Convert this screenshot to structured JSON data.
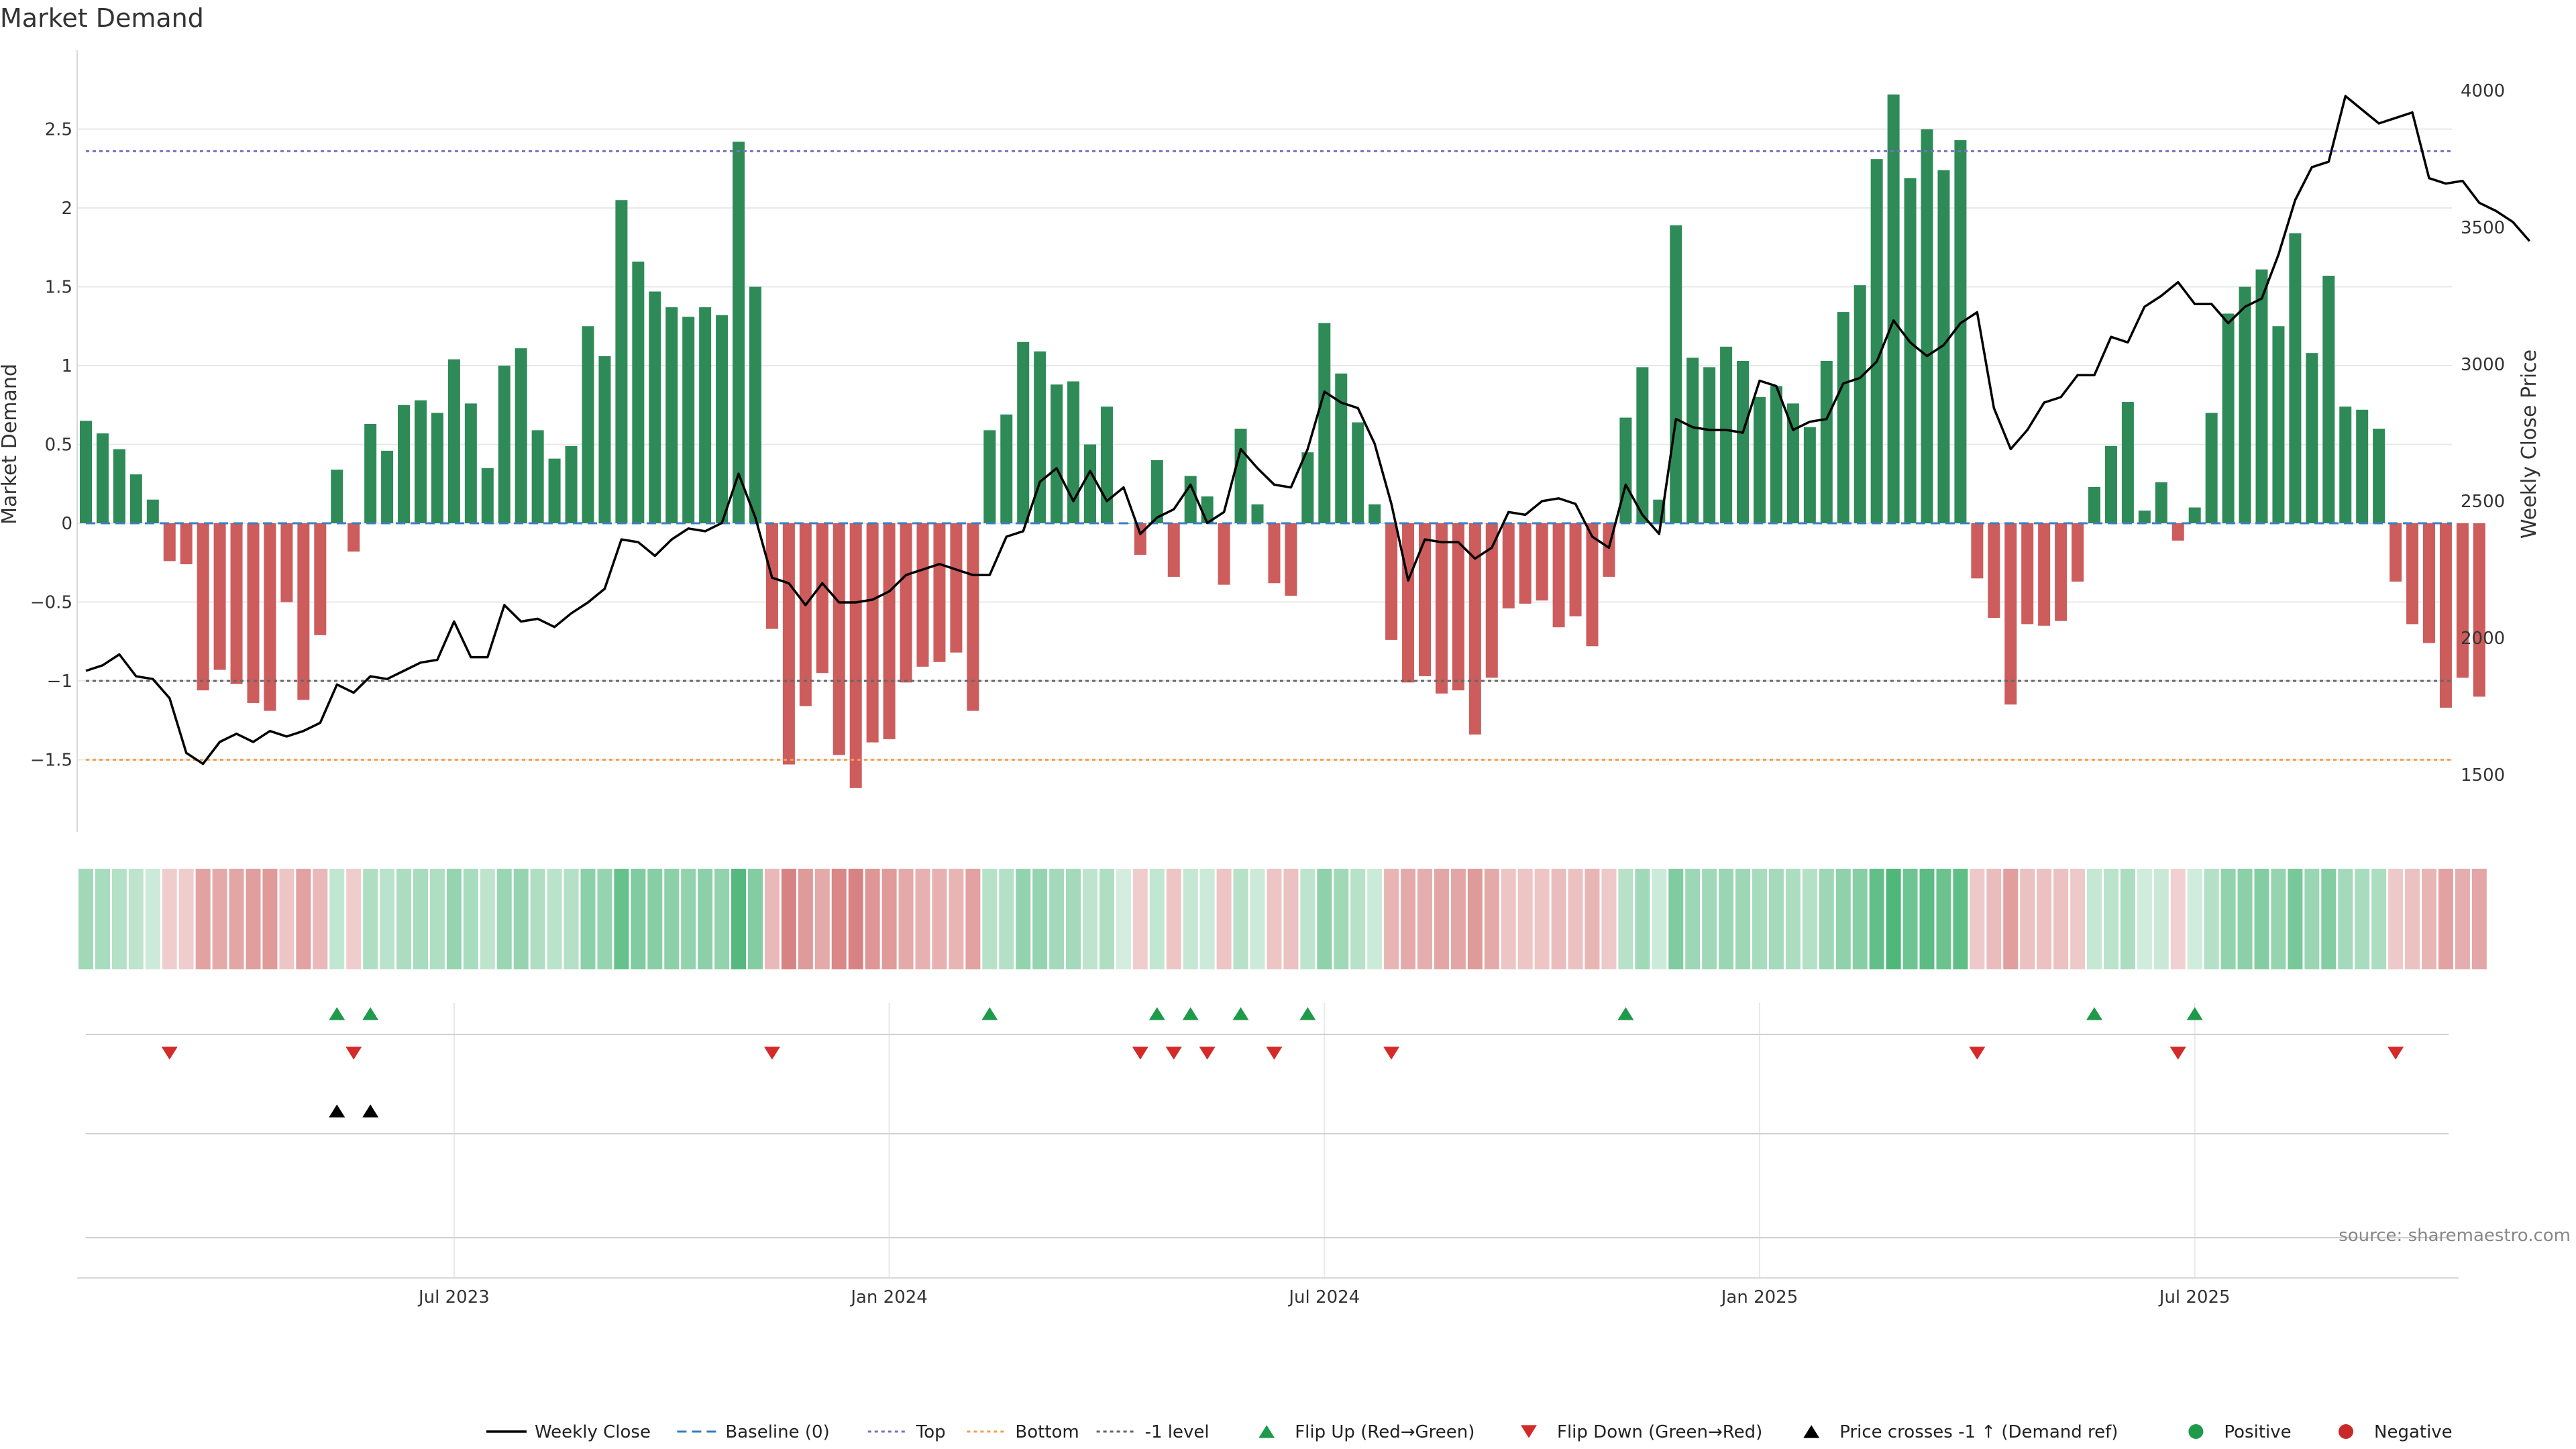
{
  "chart_data": {
    "type": "bar",
    "title": "Market Demand",
    "ylabel": "Market Demand",
    "y2label": "Weekly Close Price",
    "source": "source: sharemaestro.com",
    "ylim": [
      -1.95,
      2.95
    ],
    "y2lim": [
      1300,
      4100
    ],
    "yticks": [
      2.5,
      2,
      1.5,
      1,
      0.5,
      0,
      -0.5,
      -1,
      -1.5
    ],
    "ytick_labels": [
      "2.5",
      "2",
      "1.5",
      "1",
      "0.5",
      "0",
      "−0.5",
      "−1",
      "−1.5"
    ],
    "y2ticks": [
      4000,
      3500,
      3000,
      2500,
      2000,
      1500
    ],
    "y2tick_labels": [
      "4000",
      "3500",
      "3000",
      "2500",
      "2000",
      "1500"
    ],
    "reference_lines": [
      {
        "name": "Top",
        "value": 2.36,
        "color": "#7b6fc4"
      },
      {
        "name": "-1 level",
        "value": -1.0,
        "color": "#666666"
      },
      {
        "name": "Bottom",
        "value": -1.5,
        "color": "#f0a050"
      }
    ],
    "xtick_indices": [
      22,
      48,
      74,
      100,
      126
    ],
    "xtick_labels": [
      "Jul 2023",
      "Jan 2024",
      "Jul 2024",
      "Jan 2025",
      "Jul 2025"
    ],
    "demand": [
      0.65,
      0.57,
      0.47,
      0.31,
      0.15,
      -0.24,
      -0.26,
      -1.06,
      -0.93,
      -1.02,
      -1.14,
      -1.19,
      -0.5,
      -1.12,
      -0.71,
      0.34,
      -0.18,
      0.63,
      0.46,
      0.75,
      0.78,
      0.7,
      1.04,
      0.76,
      0.35,
      1.0,
      1.11,
      0.59,
      0.41,
      0.49,
      1.25,
      1.06,
      2.05,
      1.66,
      1.47,
      1.37,
      1.31,
      1.37,
      1.32,
      2.42,
      1.5,
      -0.67,
      -1.53,
      -1.16,
      -0.95,
      -1.47,
      -1.68,
      -1.39,
      -1.37,
      -1.01,
      -0.91,
      -0.88,
      -0.82,
      -1.19,
      0.59,
      0.69,
      1.15,
      1.09,
      0.88,
      0.9,
      0.5,
      0.74,
      0.0,
      -0.2,
      0.4,
      -0.34,
      0.3,
      0.17,
      -0.39,
      0.6,
      0.12,
      -0.38,
      -0.46,
      0.45,
      1.27,
      0.95,
      0.64,
      0.12,
      -0.74,
      -1.01,
      -0.97,
      -1.08,
      -1.06,
      -1.34,
      -0.98,
      -0.54,
      -0.51,
      -0.49,
      -0.66,
      -0.59,
      -0.78,
      -0.34,
      0.67,
      0.99,
      0.15,
      1.89,
      1.05,
      0.99,
      1.12,
      1.03,
      0.8,
      0.87,
      0.76,
      0.61,
      1.03,
      1.34,
      1.51,
      2.31,
      2.72,
      2.19,
      2.5,
      2.24,
      2.43,
      -0.35,
      -0.6,
      -1.15,
      -0.64,
      -0.65,
      -0.62,
      -0.37,
      0.23,
      0.49,
      0.77,
      0.08,
      0.26,
      -0.11,
      0.1,
      0.7,
      1.33,
      1.5,
      1.61,
      1.25,
      1.84,
      1.08,
      1.57,
      0.74,
      0.72,
      0.6,
      -0.37,
      -0.64,
      -0.76,
      -1.17,
      -0.98,
      -1.1
    ],
    "close": [
      1880,
      1900,
      1940,
      1860,
      1850,
      1780,
      1580,
      1540,
      1620,
      1650,
      1620,
      1660,
      1640,
      1660,
      1690,
      1830,
      1800,
      1860,
      1850,
      1880,
      1910,
      1920,
      2060,
      1930,
      1930,
      2120,
      2060,
      2070,
      2040,
      2090,
      2130,
      2180,
      2360,
      2350,
      2300,
      2360,
      2400,
      2390,
      2420,
      2600,
      2440,
      2220,
      2200,
      2120,
      2200,
      2130,
      2130,
      2140,
      2170,
      2230,
      2250,
      2270,
      2250,
      2230,
      2230,
      2370,
      2390,
      2570,
      2620,
      2500,
      2610,
      2500,
      2550,
      2380,
      2440,
      2470,
      2560,
      2420,
      2460,
      2690,
      2620,
      2560,
      2550,
      2690,
      2900,
      2860,
      2840,
      2710,
      2490,
      2210,
      2360,
      2350,
      2350,
      2290,
      2330,
      2460,
      2450,
      2500,
      2510,
      2490,
      2370,
      2330,
      2560,
      2450,
      2380,
      2800,
      2770,
      2760,
      2760,
      2750,
      2940,
      2920,
      2760,
      2790,
      2800,
      2930,
      2950,
      3010,
      3160,
      3080,
      3030,
      3070,
      3150,
      3190,
      2840,
      2690,
      2760,
      2860,
      2880,
      2960,
      2960,
      3100,
      3080,
      3210,
      3250,
      3300,
      3220,
      3220,
      3150,
      3210,
      3240,
      3400,
      3600,
      3720,
      3740,
      3980,
      3930,
      3880,
      3900,
      3920,
      3680,
      3660,
      3670,
      3590,
      3560,
      3520,
      3450
    ],
    "heat_lightness": [
      0.74,
      0.76,
      0.79,
      0.82,
      0.86,
      0.87,
      0.87,
      0.76,
      0.78,
      0.77,
      0.75,
      0.74,
      0.85,
      0.76,
      0.82,
      0.83,
      0.87,
      0.78,
      0.81,
      0.77,
      0.76,
      0.78,
      0.71,
      0.76,
      0.82,
      0.72,
      0.71,
      0.78,
      0.81,
      0.79,
      0.68,
      0.71,
      0.58,
      0.65,
      0.67,
      0.68,
      0.7,
      0.68,
      0.7,
      0.53,
      0.66,
      0.82,
      0.68,
      0.74,
      0.78,
      0.69,
      0.68,
      0.73,
      0.74,
      0.78,
      0.8,
      0.8,
      0.81,
      0.76,
      0.8,
      0.79,
      0.7,
      0.71,
      0.75,
      0.75,
      0.82,
      0.78,
      0.88,
      0.87,
      0.83,
      0.85,
      0.84,
      0.86,
      0.85,
      0.8,
      0.86,
      0.85,
      0.84,
      0.82,
      0.69,
      0.74,
      0.8,
      0.86,
      0.81,
      0.78,
      0.79,
      0.77,
      0.77,
      0.74,
      0.78,
      0.85,
      0.85,
      0.85,
      0.83,
      0.84,
      0.81,
      0.86,
      0.8,
      0.74,
      0.86,
      0.65,
      0.73,
      0.74,
      0.72,
      0.73,
      0.76,
      0.75,
      0.77,
      0.79,
      0.73,
      0.69,
      0.67,
      0.57,
      0.51,
      0.6,
      0.55,
      0.59,
      0.56,
      0.86,
      0.83,
      0.75,
      0.84,
      0.84,
      0.84,
      0.86,
      0.84,
      0.81,
      0.77,
      0.87,
      0.85,
      0.88,
      0.87,
      0.79,
      0.7,
      0.68,
      0.66,
      0.71,
      0.63,
      0.72,
      0.66,
      0.75,
      0.76,
      0.77,
      0.86,
      0.84,
      0.81,
      0.76,
      0.79,
      0.77
    ],
    "flip_up": [
      15,
      17,
      54,
      64,
      66,
      69,
      73,
      92,
      120,
      126
    ],
    "flip_down": [
      5,
      16,
      41,
      63,
      65,
      67,
      71,
      78,
      113,
      125,
      138
    ],
    "price_cross": [
      15,
      17
    ],
    "legend": [
      {
        "label": "Weekly Close",
        "kind": "line",
        "color": "#000000"
      },
      {
        "label": "Baseline (0)",
        "kind": "dashed",
        "color": "#3a7ebf"
      },
      {
        "label": "Top",
        "kind": "dotted",
        "color": "#7b6fc4"
      },
      {
        "label": "Bottom",
        "kind": "dotted",
        "color": "#f0a050"
      },
      {
        "label": "-1 level",
        "kind": "dotted",
        "color": "#666666"
      },
      {
        "label": "Flip Up (Red→Green)",
        "kind": "tri-up",
        "color": "#1e9a4a"
      },
      {
        "label": "Flip Down (Green→Red)",
        "kind": "tri-down",
        "color": "#d42a2a"
      },
      {
        "label": "Price crosses -1 ↑ (Demand ref)",
        "kind": "tri-up",
        "color": "#000000"
      },
      {
        "label": "Positive",
        "kind": "dot",
        "color": "#1e9a4a"
      },
      {
        "label": "Negative",
        "kind": "dot",
        "color": "#c82a2a"
      }
    ],
    "colors": {
      "positive_bar": "#2e8b57",
      "negative_bar": "#cd5c5c",
      "flip_up": "#1e9a4a",
      "flip_down": "#d42a2a",
      "cross": "#000000",
      "baseline": "#3a7ebf"
    }
  }
}
